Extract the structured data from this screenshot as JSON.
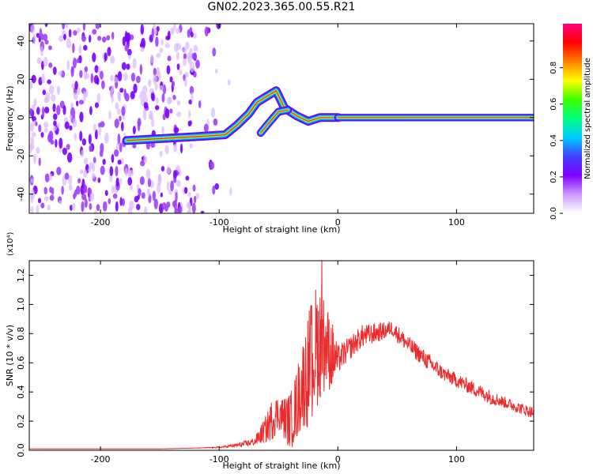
{
  "title": "GN02.2023.365.00.55.R21",
  "colors": {
    "snr_line": "#ee2a2a",
    "axis": "#000000",
    "colormap": [
      "#ffffff",
      "#cc99ff",
      "#8000ff",
      "#4040ff",
      "#00ccff",
      "#00ff80",
      "#40ff00",
      "#ffff00",
      "#ff8000",
      "#ff0000",
      "#ff0080"
    ]
  },
  "chart_data": [
    {
      "type": "heatmap",
      "xlabel": "Height of straight line (km)",
      "ylabel": "Frequency (Hz)",
      "xlim": [
        -260,
        165
      ],
      "ylim": [
        -50,
        49
      ],
      "xticks": [
        -200,
        -100,
        0,
        100
      ],
      "yticks": [
        -40,
        -20,
        0,
        20,
        40
      ],
      "colorbar": {
        "label": "Normalized spectral amplitude",
        "range": [
          0,
          1
        ],
        "ticks": [
          0.0,
          0.2,
          0.4,
          0.6,
          0.8
        ]
      },
      "ridge": [
        {
          "x": -178,
          "y": -12
        },
        {
          "x": -150,
          "y": -11
        },
        {
          "x": -120,
          "y": -10
        },
        {
          "x": -95,
          "y": -9
        },
        {
          "x": -85,
          "y": -4
        },
        {
          "x": -75,
          "y": 2
        },
        {
          "x": -68,
          "y": 8
        },
        {
          "x": -60,
          "y": 11
        },
        {
          "x": -52,
          "y": 14
        },
        {
          "x": -45,
          "y": 5
        },
        {
          "x": -35,
          "y": 1
        },
        {
          "x": -25,
          "y": -2
        },
        {
          "x": -15,
          "y": 0
        },
        {
          "x": 0,
          "y": 0
        },
        {
          "x": 165,
          "y": 0
        }
      ],
      "secondary_ridge": [
        {
          "x": -65,
          "y": -8
        },
        {
          "x": -57,
          "y": -2
        },
        {
          "x": -50,
          "y": 3
        },
        {
          "x": -42,
          "y": 4
        }
      ]
    },
    {
      "type": "line",
      "xlabel": "Height of straight line (km)",
      "ylabel": "SNR (10 * v/v)",
      "yscale_label": "(x10⁴)",
      "xlim": [
        -260,
        165
      ],
      "ylim": [
        0,
        1.3
      ],
      "xticks": [
        -200,
        -100,
        0,
        100
      ],
      "yticks": [
        0.0,
        0.2,
        0.4,
        0.6,
        0.8,
        1.0,
        1.2
      ],
      "series": [
        {
          "x": [
            -260,
            -200,
            -150,
            -120,
            -100,
            -90,
            -80,
            -70,
            -60,
            -55,
            -50,
            -45,
            -40,
            -35,
            -30,
            -25,
            -20,
            -15,
            -10,
            -5,
            0,
            10,
            20,
            30,
            40,
            45,
            50,
            60,
            70,
            80,
            90,
            100,
            110,
            120,
            130,
            140,
            150,
            160,
            165
          ],
          "y": [
            0.01,
            0.01,
            0.01,
            0.015,
            0.02,
            0.03,
            0.04,
            0.06,
            0.15,
            0.22,
            0.26,
            0.22,
            0.2,
            0.3,
            0.45,
            0.55,
            0.68,
            0.75,
            0.72,
            0.65,
            0.62,
            0.7,
            0.78,
            0.8,
            0.82,
            0.84,
            0.8,
            0.72,
            0.65,
            0.58,
            0.52,
            0.48,
            0.44,
            0.4,
            0.36,
            0.33,
            0.3,
            0.27,
            0.26
          ],
          "spread": [
            0,
            0,
            0,
            0,
            0.005,
            0.01,
            0.02,
            0.03,
            0.1,
            0.15,
            0.12,
            0.15,
            0.2,
            0.25,
            0.3,
            0.4,
            0.45,
            0.4,
            0.3,
            0.25,
            0.1,
            0.08,
            0.08,
            0.07,
            0.06,
            0.05,
            0.06,
            0.06,
            0.06,
            0.06,
            0.05,
            0.05,
            0.05,
            0.05,
            0.05,
            0.04,
            0.04,
            0.04,
            0.04
          ]
        }
      ]
    }
  ]
}
